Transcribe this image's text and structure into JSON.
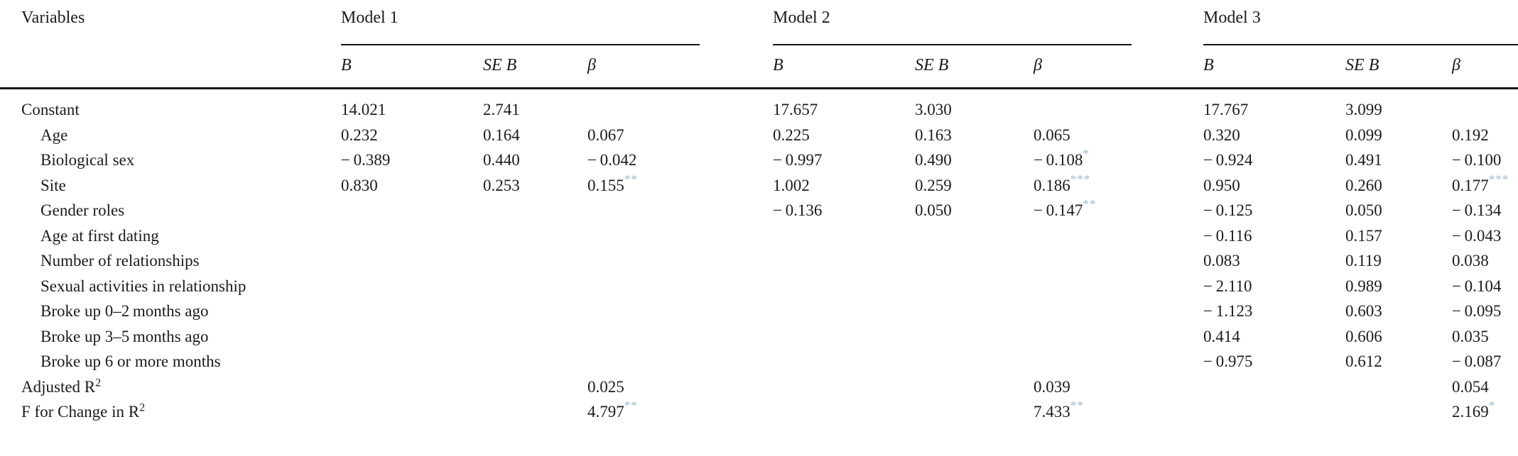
{
  "table": {
    "variables_header": "Variables",
    "sig_color": "#9db5ca",
    "models": [
      {
        "label": "Model 1",
        "cols": [
          "B",
          "SE B",
          "β"
        ]
      },
      {
        "label": "Model 2",
        "cols": [
          "B",
          "SE B",
          "β"
        ]
      },
      {
        "label": "Model 3",
        "cols": [
          "B",
          "SE B",
          "β"
        ]
      }
    ],
    "rows": [
      {
        "label": "Constant",
        "indent": false,
        "cells": [
          [
            "14.021",
            ""
          ],
          [
            "2.741",
            ""
          ],
          null,
          [
            "17.657",
            ""
          ],
          [
            "3.030",
            ""
          ],
          null,
          [
            "17.767",
            ""
          ],
          [
            "3.099",
            ""
          ],
          null
        ]
      },
      {
        "label": "Age",
        "indent": true,
        "cells": [
          [
            "0.232",
            ""
          ],
          [
            "0.164",
            ""
          ],
          [
            "0.067",
            ""
          ],
          [
            "0.225",
            ""
          ],
          [
            "0.163",
            ""
          ],
          [
            "0.065",
            ""
          ],
          [
            "0.320",
            ""
          ],
          [
            "0.099",
            ""
          ],
          [
            "0.192",
            ""
          ]
        ]
      },
      {
        "label": "Biological sex",
        "indent": true,
        "cells": [
          [
            "− 0.389",
            ""
          ],
          [
            "0.440",
            ""
          ],
          [
            "− 0.042",
            ""
          ],
          [
            "− 0.997",
            ""
          ],
          [
            "0.490",
            ""
          ],
          [
            "− 0.108",
            "*"
          ],
          [
            "− 0.924",
            ""
          ],
          [
            "0.491",
            ""
          ],
          [
            "− 0.100",
            ""
          ]
        ]
      },
      {
        "label": "Site",
        "indent": true,
        "cells": [
          [
            "0.830",
            ""
          ],
          [
            "0.253",
            ""
          ],
          [
            "0.155",
            "**"
          ],
          [
            "1.002",
            ""
          ],
          [
            "0.259",
            ""
          ],
          [
            "0.186",
            "***"
          ],
          [
            "0.950",
            ""
          ],
          [
            "0.260",
            ""
          ],
          [
            "0.177",
            "***"
          ]
        ]
      },
      {
        "label": "Gender roles",
        "indent": true,
        "cells": [
          null,
          null,
          null,
          [
            "− 0.136",
            ""
          ],
          [
            "0.050",
            ""
          ],
          [
            "− 0.147",
            "**"
          ],
          [
            "− 0.125",
            ""
          ],
          [
            "0.050",
            ""
          ],
          [
            "− 0.134",
            ""
          ]
        ]
      },
      {
        "label": "Age at first dating",
        "indent": true,
        "cells": [
          null,
          null,
          null,
          null,
          null,
          null,
          [
            "− 0.116",
            ""
          ],
          [
            "0.157",
            ""
          ],
          [
            "− 0.043",
            ""
          ]
        ]
      },
      {
        "label": "Number of relationships",
        "indent": true,
        "cells": [
          null,
          null,
          null,
          null,
          null,
          null,
          [
            "0.083",
            ""
          ],
          [
            "0.119",
            ""
          ],
          [
            "0.038",
            ""
          ]
        ]
      },
      {
        "label": "Sexual activities in relationship",
        "indent": true,
        "cells": [
          null,
          null,
          null,
          null,
          null,
          null,
          [
            "− 2.110",
            ""
          ],
          [
            "0.989",
            ""
          ],
          [
            "− 0.104",
            ""
          ]
        ]
      },
      {
        "label": "Broke up 0–2 months ago",
        "indent": true,
        "cells": [
          null,
          null,
          null,
          null,
          null,
          null,
          [
            "− 1.123",
            ""
          ],
          [
            "0.603",
            ""
          ],
          [
            "− 0.095",
            ""
          ]
        ]
      },
      {
        "label": "Broke up 3–5 months ago",
        "indent": true,
        "cells": [
          null,
          null,
          null,
          null,
          null,
          null,
          [
            "0.414",
            ""
          ],
          [
            "0.606",
            ""
          ],
          [
            "0.035",
            ""
          ]
        ]
      },
      {
        "label": "Broke up 6 or more months",
        "indent": true,
        "cells": [
          null,
          null,
          null,
          null,
          null,
          null,
          [
            "− 0.975",
            ""
          ],
          [
            "0.612",
            ""
          ],
          [
            "− 0.087",
            ""
          ]
        ]
      },
      {
        "label": "Adjusted R",
        "label_sup": "2",
        "indent": false,
        "cells": [
          null,
          null,
          [
            "0.025",
            ""
          ],
          null,
          null,
          [
            "0.039",
            ""
          ],
          null,
          null,
          [
            "0.054",
            ""
          ]
        ]
      },
      {
        "label": "F for Change in R",
        "label_sup": "2",
        "indent": false,
        "cells": [
          null,
          null,
          [
            "4.797",
            "**"
          ],
          null,
          null,
          [
            "7.433",
            "**"
          ],
          null,
          null,
          [
            "2.169",
            "*"
          ]
        ]
      }
    ]
  }
}
